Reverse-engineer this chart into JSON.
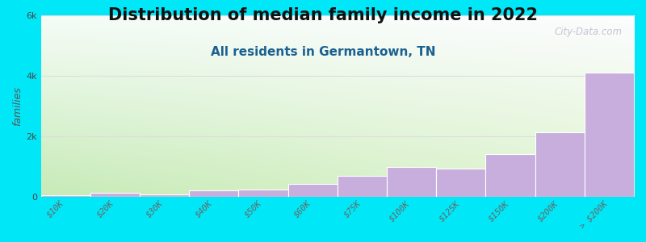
{
  "title": "Distribution of median family income in 2022",
  "subtitle": "All residents in Germantown, TN",
  "ylabel": "families",
  "categories": [
    "$10K",
    "$20K",
    "$30K",
    "$40K",
    "$50K",
    "$60K",
    "$75K",
    "$100K",
    "$125K",
    "$150K",
    "$200K",
    "> $200K"
  ],
  "values": [
    55,
    150,
    90,
    220,
    250,
    430,
    700,
    1000,
    950,
    1430,
    2150,
    4100
  ],
  "bar_color": "#c8aedd",
  "background_color": "#00e8f8",
  "ylim": [
    0,
    6000
  ],
  "yticks": [
    0,
    2000,
    4000,
    6000
  ],
  "ytick_labels": [
    "0",
    "2k",
    "4k",
    "6k"
  ],
  "watermark": "City-Data.com",
  "title_fontsize": 15,
  "subtitle_fontsize": 11,
  "ylabel_fontsize": 9,
  "grad_bottom_left": "#c8e8b8",
  "grad_top_right": "#f8feff"
}
